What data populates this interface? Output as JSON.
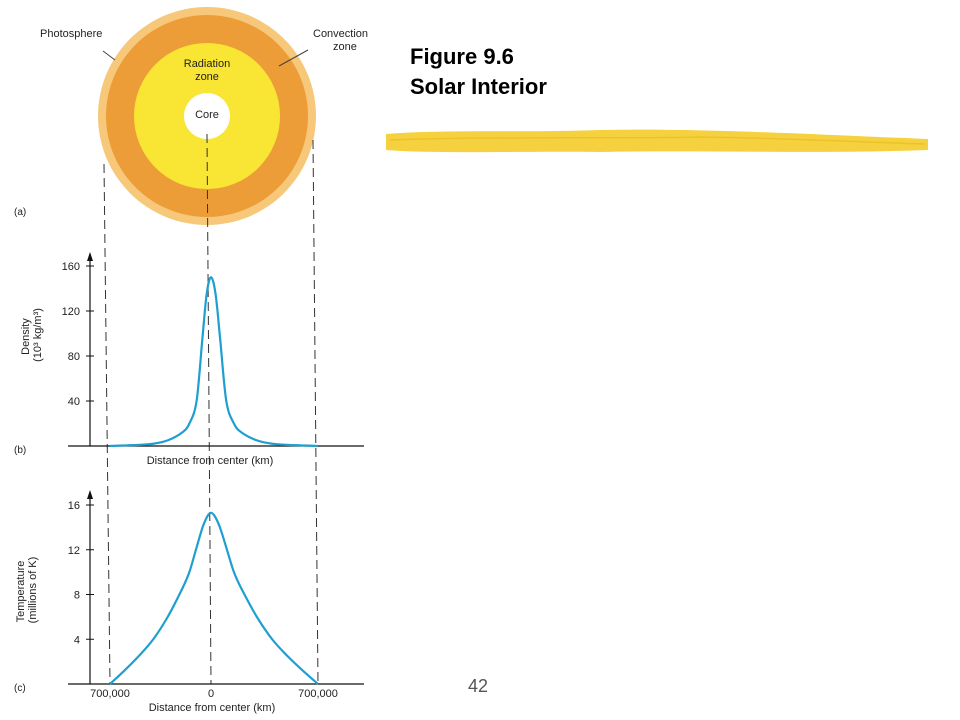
{
  "slide": {
    "title_line1": "Figure 9.6",
    "title_line2": "Solar Interior",
    "page_number": "42"
  },
  "colors": {
    "photosphere": "#f7c77a",
    "convection": "#ec9d38",
    "radiation": "#f9e534",
    "core": "#ffffff",
    "curve": "#1e9fd0",
    "highlighter": "#f5cd2f"
  },
  "sun_diagram": {
    "panel_label": "(a)",
    "labels": {
      "photosphere": "Photosphere",
      "convection_line1": "Convection",
      "convection_line2": "zone",
      "radiation_line1": "Radiation",
      "radiation_line2": "zone",
      "core": "Core"
    }
  },
  "chart_data": [
    {
      "type": "line",
      "panel_label": "(b)",
      "xlabel": "Distance from center (km)",
      "ylabel_line1": "Density",
      "ylabel_line2": "(10³ kg/m³)",
      "ylim": [
        0,
        160
      ],
      "yticks": [
        "160",
        "120",
        "80",
        "40"
      ],
      "x": [
        -700000,
        -600000,
        -500000,
        -400000,
        -300000,
        -200000,
        -150000,
        -100000,
        -60000,
        -30000,
        0,
        30000,
        60000,
        100000,
        150000,
        200000,
        300000,
        400000,
        500000,
        600000,
        700000
      ],
      "values": [
        0,
        0.5,
        1,
        2,
        5,
        12,
        20,
        40,
        95,
        135,
        150,
        135,
        95,
        40,
        20,
        12,
        5,
        2,
        1,
        0.5,
        0
      ]
    },
    {
      "type": "line",
      "panel_label": "(c)",
      "xlabel": "Distance from center (km)",
      "ylabel_line1": "Temperature",
      "ylabel_line2": "(millions of K)",
      "ylim": [
        0,
        16
      ],
      "yticks": [
        "16",
        "12",
        "8",
        "4"
      ],
      "xticks": [
        "700,000",
        "0",
        "700,000"
      ],
      "x": [
        -700000,
        -600000,
        -500000,
        -400000,
        -300000,
        -200000,
        -150000,
        -100000,
        -50000,
        0,
        50000,
        100000,
        150000,
        200000,
        300000,
        400000,
        500000,
        600000,
        700000
      ],
      "values": [
        0,
        1.2,
        2.5,
        4,
        6,
        8.5,
        10,
        12.2,
        14.3,
        15.3,
        14.3,
        12.2,
        10,
        8.5,
        6,
        4,
        2.5,
        1.2,
        0
      ]
    }
  ]
}
